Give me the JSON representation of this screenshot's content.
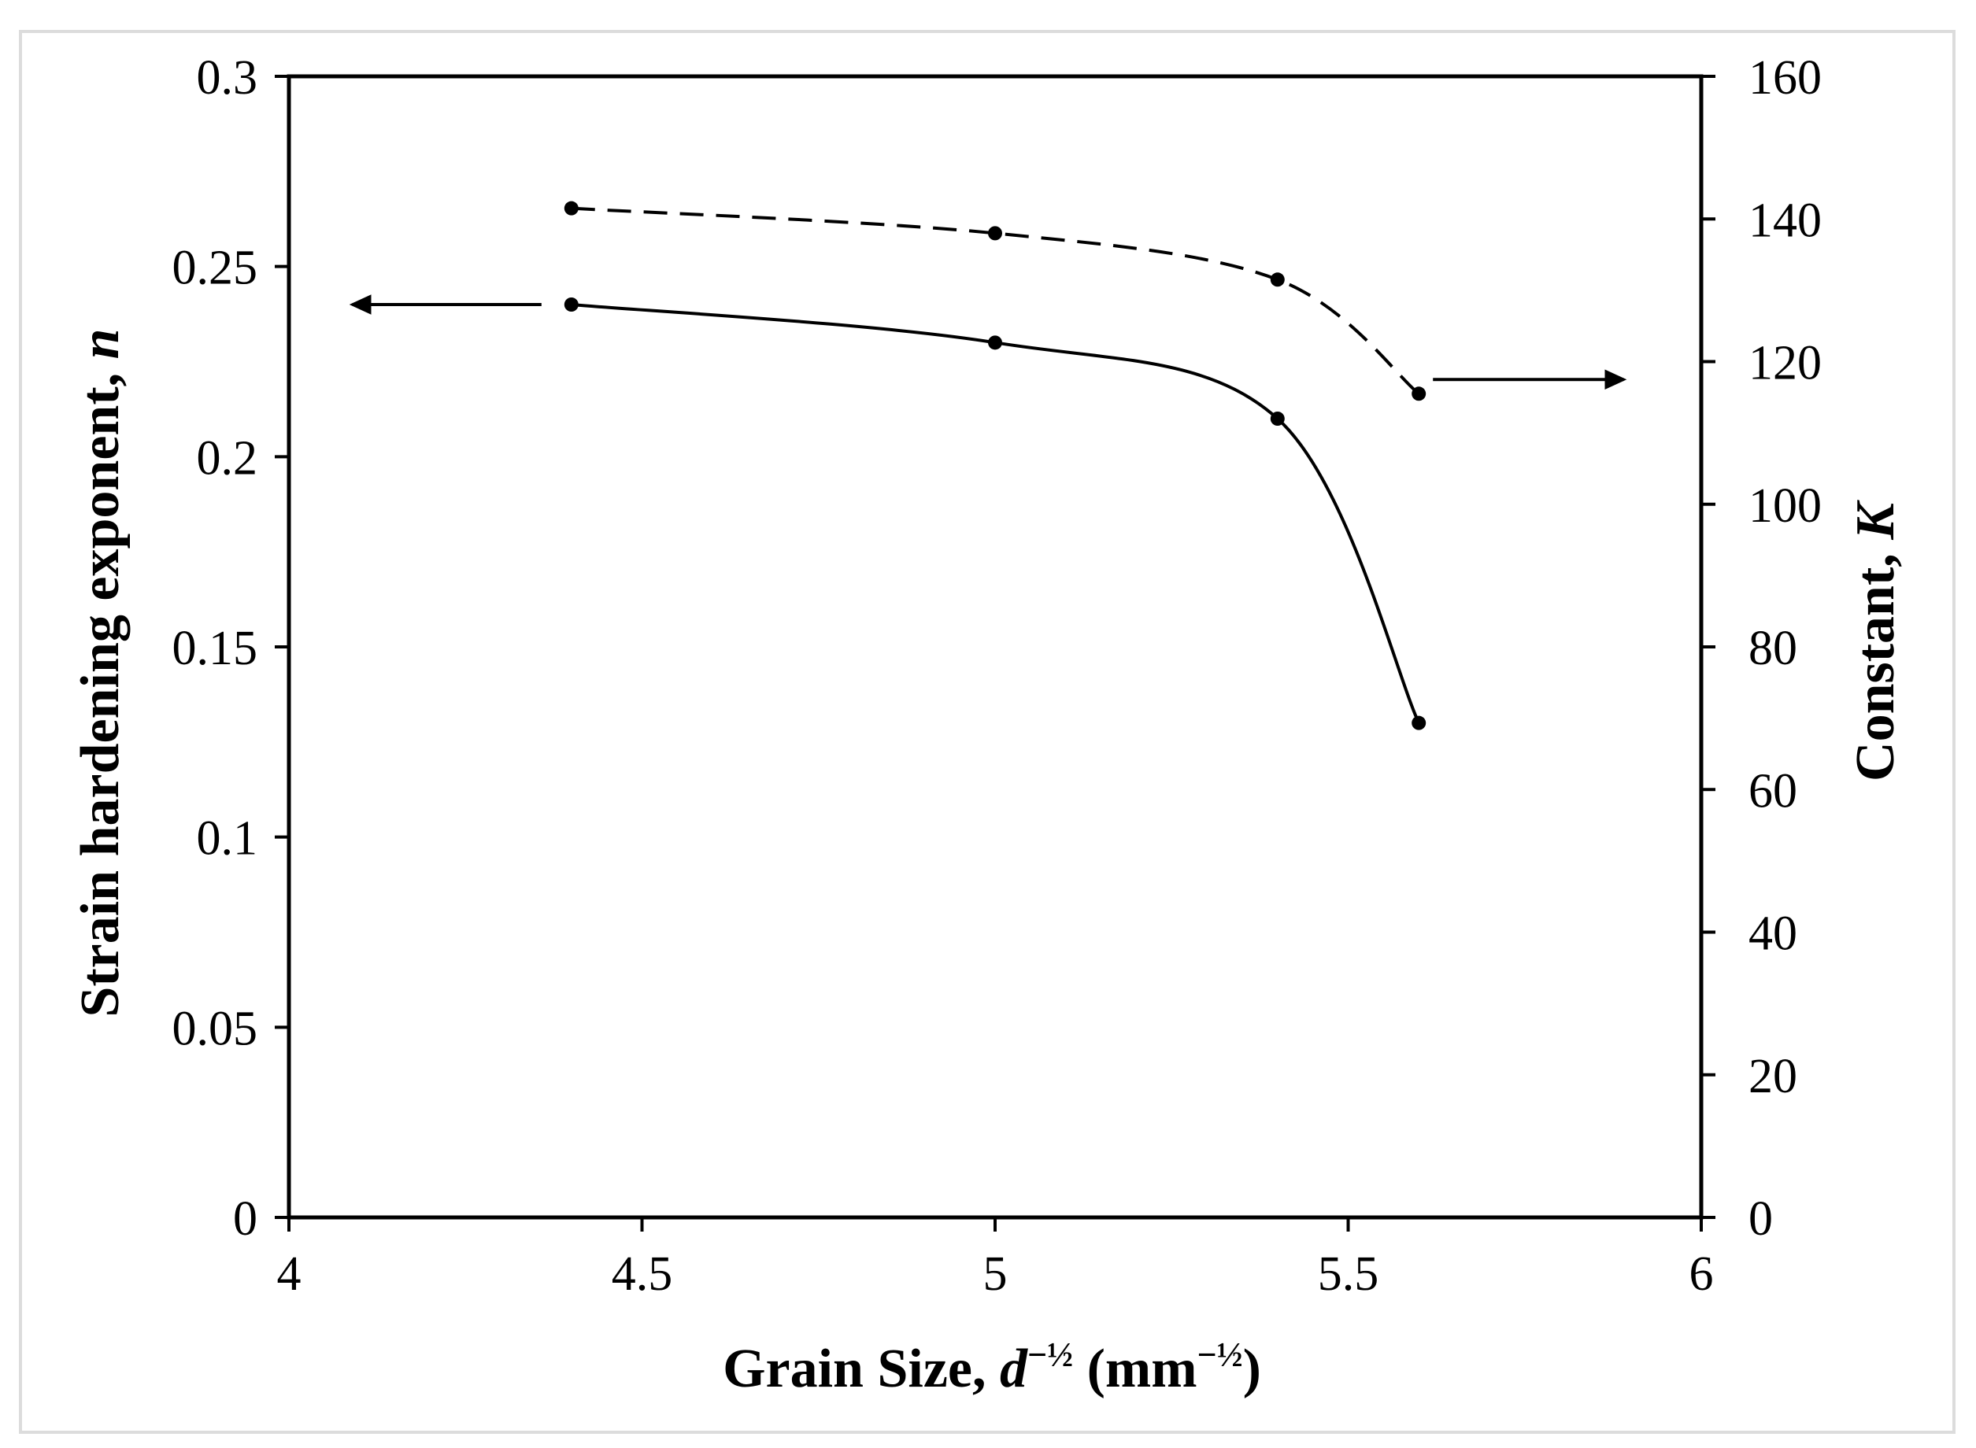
{
  "chart_data": {
    "type": "line",
    "title": "",
    "x": [
      4.4,
      5.0,
      5.4,
      5.6
    ],
    "xlabel": {
      "main": "Grain Size, ",
      "italic": "d",
      "sup1": "−½",
      "unit_open": " (mm",
      "sup2": "−½",
      "unit_close": ")"
    },
    "ylabel_left": {
      "main": "Strain hardening exponent, ",
      "italic": "n"
    },
    "ylabel_right": {
      "main": "Constant, ",
      "italic": "K"
    },
    "xlim": [
      4,
      6
    ],
    "ylim_left": [
      0,
      0.3
    ],
    "ylim_right": [
      0,
      160
    ],
    "x_ticks": [
      4,
      4.5,
      5,
      5.5,
      6
    ],
    "x_tick_labels": [
      "4",
      "4.5",
      "5",
      "5.5",
      "6"
    ],
    "y_left_ticks": [
      0,
      0.05,
      0.1,
      0.15,
      0.2,
      0.25,
      0.3
    ],
    "y_left_tick_labels": [
      "0",
      "0.05",
      "0.1",
      "0.15",
      "0.2",
      "0.25",
      "0.3"
    ],
    "y_right_ticks": [
      0,
      20,
      40,
      60,
      80,
      100,
      120,
      140,
      160
    ],
    "y_right_tick_labels": [
      "0",
      "20",
      "40",
      "60",
      "80",
      "100",
      "120",
      "140",
      "160"
    ],
    "grid": false,
    "series": [
      {
        "axis": "left",
        "line_style": "solid",
        "arrow": "left",
        "values": [
          0.24,
          0.23,
          0.21,
          0.13
        ]
      },
      {
        "axis": "right",
        "line_style": "dashed",
        "arrow": "right",
        "values": [
          141.5,
          138,
          131.5,
          115.5
        ]
      }
    ],
    "colors": {
      "line": "#000000",
      "frame_border": "#dcdcdc"
    }
  }
}
